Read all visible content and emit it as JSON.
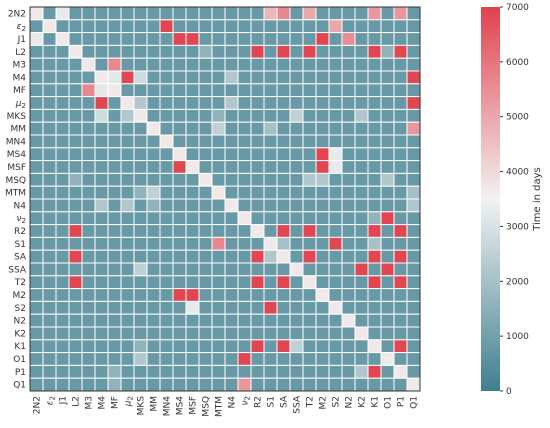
{
  "chart_data": {
    "type": "heatmap",
    "labels": [
      "2N2",
      "ε2",
      "J1",
      "L2",
      "M3",
      "M4",
      "MF",
      "μ2",
      "MKS",
      "MM",
      "MN4",
      "MS4",
      "MSF",
      "MSQ",
      "MTM",
      "N4",
      "ν2",
      "R2",
      "S1",
      "SA",
      "SSA",
      "T2",
      "M2",
      "S2",
      "N2",
      "K2",
      "K1",
      "O1",
      "P1",
      "Q1"
    ],
    "colorbar": {
      "label": "Time in days",
      "range": [
        0,
        7000
      ],
      "ticks": [
        0,
        1000,
        2000,
        3000,
        4000,
        5000,
        6000,
        7000
      ]
    },
    "colors": {
      "low": "#3f7f8f",
      "mid": "#f2f2f2",
      "high": "#e0424e",
      "cell_border": "#ffffff",
      "frame": "#333333"
    },
    "grid": true,
    "default_value": 800,
    "diagonal_value": 3700,
    "cells": [
      [
        "2N2",
        "SA",
        5600
      ],
      [
        "2N2",
        "S1",
        4700
      ],
      [
        "2N2",
        "T2",
        5000
      ],
      [
        "2N2",
        "K1",
        5300
      ],
      [
        "2N2",
        "P1",
        5300
      ],
      [
        "2N2",
        "J1",
        3300
      ],
      [
        "ε2",
        "MN4",
        6900
      ],
      [
        "ε2",
        "S2",
        5000
      ],
      [
        "J1",
        "MSF",
        6900
      ],
      [
        "J1",
        "MS4",
        6900
      ],
      [
        "J1",
        "M2",
        6900
      ],
      [
        "J1",
        "N2",
        5500
      ],
      [
        "J1",
        "2N2",
        3300
      ],
      [
        "L2",
        "R2",
        6900
      ],
      [
        "L2",
        "SA",
        6900
      ],
      [
        "L2",
        "T2",
        6900
      ],
      [
        "L2",
        "K1",
        6900
      ],
      [
        "L2",
        "P1",
        6900
      ],
      [
        "L2",
        "MSQ",
        1600
      ],
      [
        "L2",
        "O1",
        1600
      ],
      [
        "M3",
        "MF",
        5600
      ],
      [
        "M4",
        "μ2",
        6900
      ],
      [
        "M4",
        "Q1",
        6900
      ],
      [
        "M4",
        "MKS",
        2800
      ],
      [
        "M4",
        "N4",
        2200
      ],
      [
        "M4",
        "MF",
        3200
      ],
      [
        "MF",
        "M3",
        5600
      ],
      [
        "MF",
        "M4",
        3200
      ],
      [
        "μ2",
        "M4",
        6900
      ],
      [
        "μ2",
        "Q1",
        6900
      ],
      [
        "μ2",
        "MKS",
        2200
      ],
      [
        "μ2",
        "N4",
        2200
      ],
      [
        "MKS",
        "M4",
        2800
      ],
      [
        "MKS",
        "μ2",
        2200
      ],
      [
        "MKS",
        "SSA",
        2500
      ],
      [
        "MKS",
        "K2",
        2200
      ],
      [
        "MKS",
        "MTM",
        1600
      ],
      [
        "MM",
        "Q1",
        5300
      ],
      [
        "MM",
        "MTM",
        2500
      ],
      [
        "MM",
        "S1",
        2000
      ],
      [
        "MS4",
        "M2",
        6900
      ],
      [
        "MS4",
        "S2",
        3300
      ],
      [
        "MSF",
        "MS4",
        6900
      ],
      [
        "MSF",
        "M2",
        6900
      ],
      [
        "MSF",
        "S2",
        3300
      ],
      [
        "MSQ",
        "L2",
        1600
      ],
      [
        "MSQ",
        "T2",
        2200
      ],
      [
        "MSQ",
        "M2",
        2200
      ],
      [
        "MSQ",
        "O1",
        2200
      ],
      [
        "MTM",
        "MKS",
        1600
      ],
      [
        "MTM",
        "MM",
        2500
      ],
      [
        "MTM",
        "Q1",
        2000
      ],
      [
        "N4",
        "M4",
        2200
      ],
      [
        "N4",
        "μ2",
        2200
      ],
      [
        "N4",
        "Q1",
        2200
      ],
      [
        "N4",
        "MM",
        1600
      ],
      [
        "ν2",
        "O1",
        6900
      ],
      [
        "ν2",
        "K1",
        1600
      ],
      [
        "R2",
        "SA",
        6900
      ],
      [
        "R2",
        "T2",
        6900
      ],
      [
        "R2",
        "K1",
        6900
      ],
      [
        "R2",
        "P1",
        6900
      ],
      [
        "R2",
        "L2",
        6900
      ],
      [
        "S1",
        "MTM",
        5600
      ],
      [
        "S1",
        "S2",
        6900
      ],
      [
        "S1",
        "SA",
        2000
      ],
      [
        "S1",
        "K1",
        2000
      ],
      [
        "SA",
        "R2",
        6900
      ],
      [
        "SA",
        "T2",
        6900
      ],
      [
        "SA",
        "K1",
        6900
      ],
      [
        "SA",
        "P1",
        6900
      ],
      [
        "SA",
        "L2",
        6900
      ],
      [
        "SA",
        "S1",
        2200
      ],
      [
        "SSA",
        "K2",
        6900
      ],
      [
        "SSA",
        "O1",
        6900
      ],
      [
        "SSA",
        "MKS",
        2500
      ],
      [
        "T2",
        "SA",
        6900
      ],
      [
        "T2",
        "R2",
        6900
      ],
      [
        "T2",
        "K1",
        6900
      ],
      [
        "T2",
        "P1",
        6900
      ],
      [
        "T2",
        "L2",
        6900
      ],
      [
        "M2",
        "MS4",
        6900
      ],
      [
        "M2",
        "MSF",
        6900
      ],
      [
        "S2",
        "MSF",
        3300
      ],
      [
        "S2",
        "S1",
        6900
      ],
      [
        "K1",
        "P1",
        6900
      ],
      [
        "K1",
        "SA",
        6900
      ],
      [
        "K1",
        "R2",
        6900
      ],
      [
        "K1",
        "SSA",
        2500
      ],
      [
        "K1",
        "MKS",
        1600
      ],
      [
        "O1",
        "ν2",
        6900
      ],
      [
        "O1",
        "MKS",
        2200
      ],
      [
        "P1",
        "K1",
        6900
      ],
      [
        "P1",
        "K2",
        2200
      ],
      [
        "P1",
        "MF",
        1600
      ],
      [
        "Q1",
        "ν2",
        5300
      ],
      [
        "Q1",
        "MF",
        1600
      ]
    ]
  }
}
